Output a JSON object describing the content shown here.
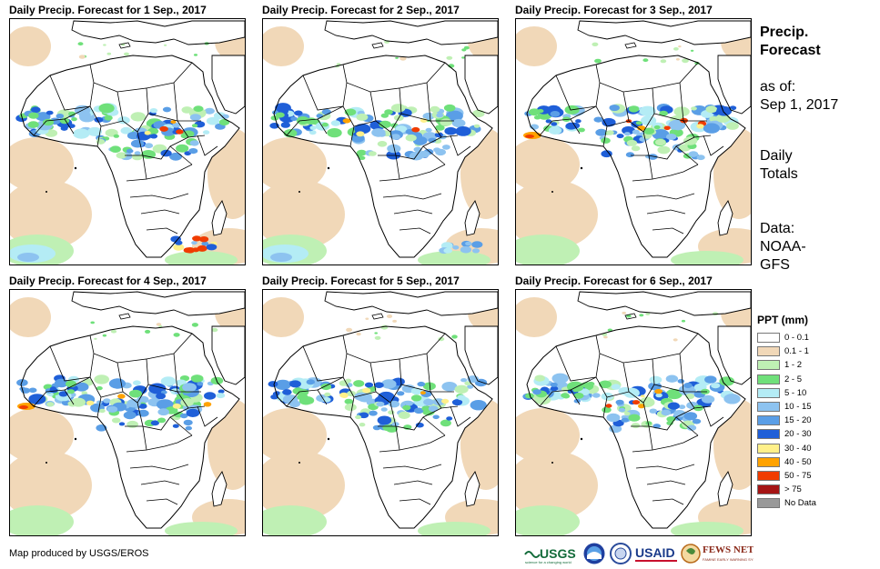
{
  "panels": [
    {
      "title": "Daily Precip. Forecast for 1 Sep., 2017"
    },
    {
      "title": "Daily Precip. Forecast for 2 Sep., 2017"
    },
    {
      "title": "Daily Precip. Forecast for 3 Sep., 2017"
    },
    {
      "title": "Daily Precip. Forecast for 4 Sep., 2017"
    },
    {
      "title": "Daily Precip. Forecast for 5 Sep., 2017"
    },
    {
      "title": "Daily Precip. Forecast for 6 Sep., 2017"
    }
  ],
  "sidebar": {
    "heading_line1": "Precip.",
    "heading_line2": "Forecast",
    "asof_line1": "as of:",
    "asof_line2": "Sep 1, 2017",
    "totals_line1": "Daily",
    "totals_line2": "Totals",
    "data_line1": "Data:",
    "data_line2": "NOAA-",
    "data_line3": "GFS"
  },
  "legend": {
    "title": "PPT (mm)",
    "items": [
      {
        "label": "0 - 0.1",
        "color": "#ffffff"
      },
      {
        "label": "0.1 - 1",
        "color": "#f1d8b8"
      },
      {
        "label": "1 - 2",
        "color": "#bff0b4"
      },
      {
        "label": "2 - 5",
        "color": "#6fe07a"
      },
      {
        "label": "5 - 10",
        "color": "#b4ecf5"
      },
      {
        "label": "10 - 15",
        "color": "#8dc3f0"
      },
      {
        "label": "15 - 20",
        "color": "#5a9ee6"
      },
      {
        "label": "20 - 30",
        "color": "#1f5fd8"
      },
      {
        "label": "30 - 40",
        "color": "#fff08a"
      },
      {
        "label": "40 - 50",
        "color": "#ffa200"
      },
      {
        "label": "50 - 75",
        "color": "#f03c00"
      },
      {
        "label": "> 75",
        "color": "#a51414"
      },
      {
        "label": "No Data",
        "color": "#999999"
      }
    ]
  },
  "credit": "Map produced by USGS/EROS",
  "logos": [
    {
      "name": "USGS",
      "text": "USGS"
    },
    {
      "name": "NOAA",
      "text": "NOAA"
    },
    {
      "name": "USGS-circle",
      "text": ""
    },
    {
      "name": "USAID",
      "text": "USAID"
    },
    {
      "name": "FEWS NET",
      "text": "FEWS NET"
    }
  ]
}
